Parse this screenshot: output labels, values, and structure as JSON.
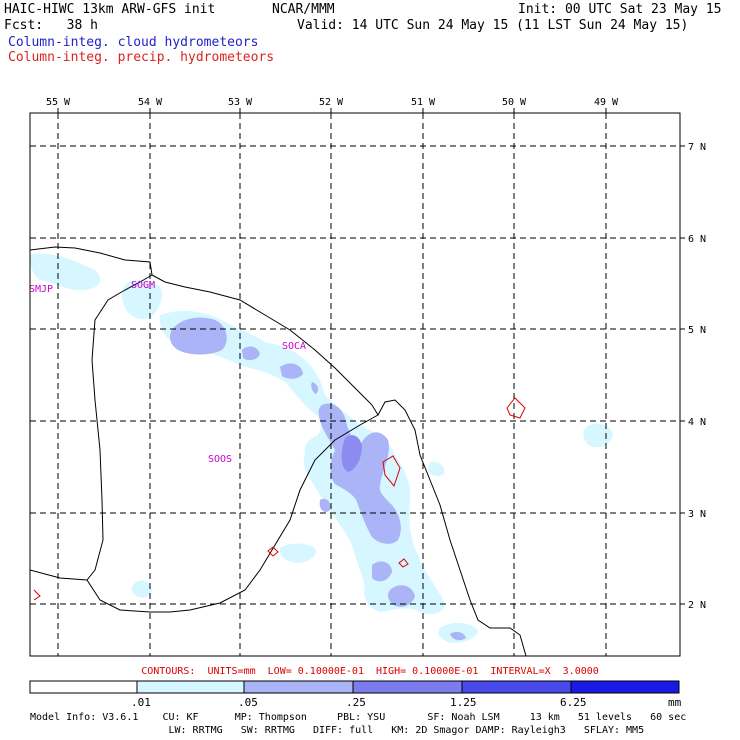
{
  "header": {
    "line1_left": "HAIC-HIWC 13km ARW-GFS init",
    "line1_mid": "NCAR/MMM",
    "line1_right": "Init: 00 UTC Sat 23 May 15",
    "fcst": "Fcst:   38 h",
    "valid": "Valid: 14 UTC Sun 24 May 15 (11 LST Sun 24 May 15)",
    "field1": "Column-integ. cloud hydrometeors",
    "field2": "Column-integ. precip. hydrometeors"
  },
  "map": {
    "lon_labels": [
      "55 W",
      "54 W",
      "53 W",
      "52 W",
      "51 W",
      "50 W",
      "49 W"
    ],
    "lat_labels": [
      "7 N",
      "6 N",
      "5 N",
      "4 N",
      "3 N",
      "2 N"
    ],
    "stations": [
      "SMJP",
      "SOGM",
      "SOCA",
      "SOOS"
    ]
  },
  "contours": "CONTOURS:  UNITS=mm  LOW= 0.10000E-01  HIGH= 0.10000E-01  INTERVAL=X  3.0000",
  "colorbar": {
    "labels": [
      ".01",
      ".05",
      ".25",
      "1.25",
      "6.25",
      "mm"
    ],
    "colors": [
      "#ffffff",
      "#d6f7ff",
      "#aab4f6",
      "#7c7cee",
      "#4a4aea",
      "#1a1ae6"
    ]
  },
  "footer": {
    "line1": "Model Info: V3.6.1    CU: KF      MP: Thompson     PBL: YSU       SF: Noah LSM     13 km   51 levels   60 sec",
    "line2": "                       LW: RRTMG   SW: RRTMG   DIFF: full   KM: 2D Smagor DAMP: Rayleigh3   SFLAY: MM5"
  }
}
